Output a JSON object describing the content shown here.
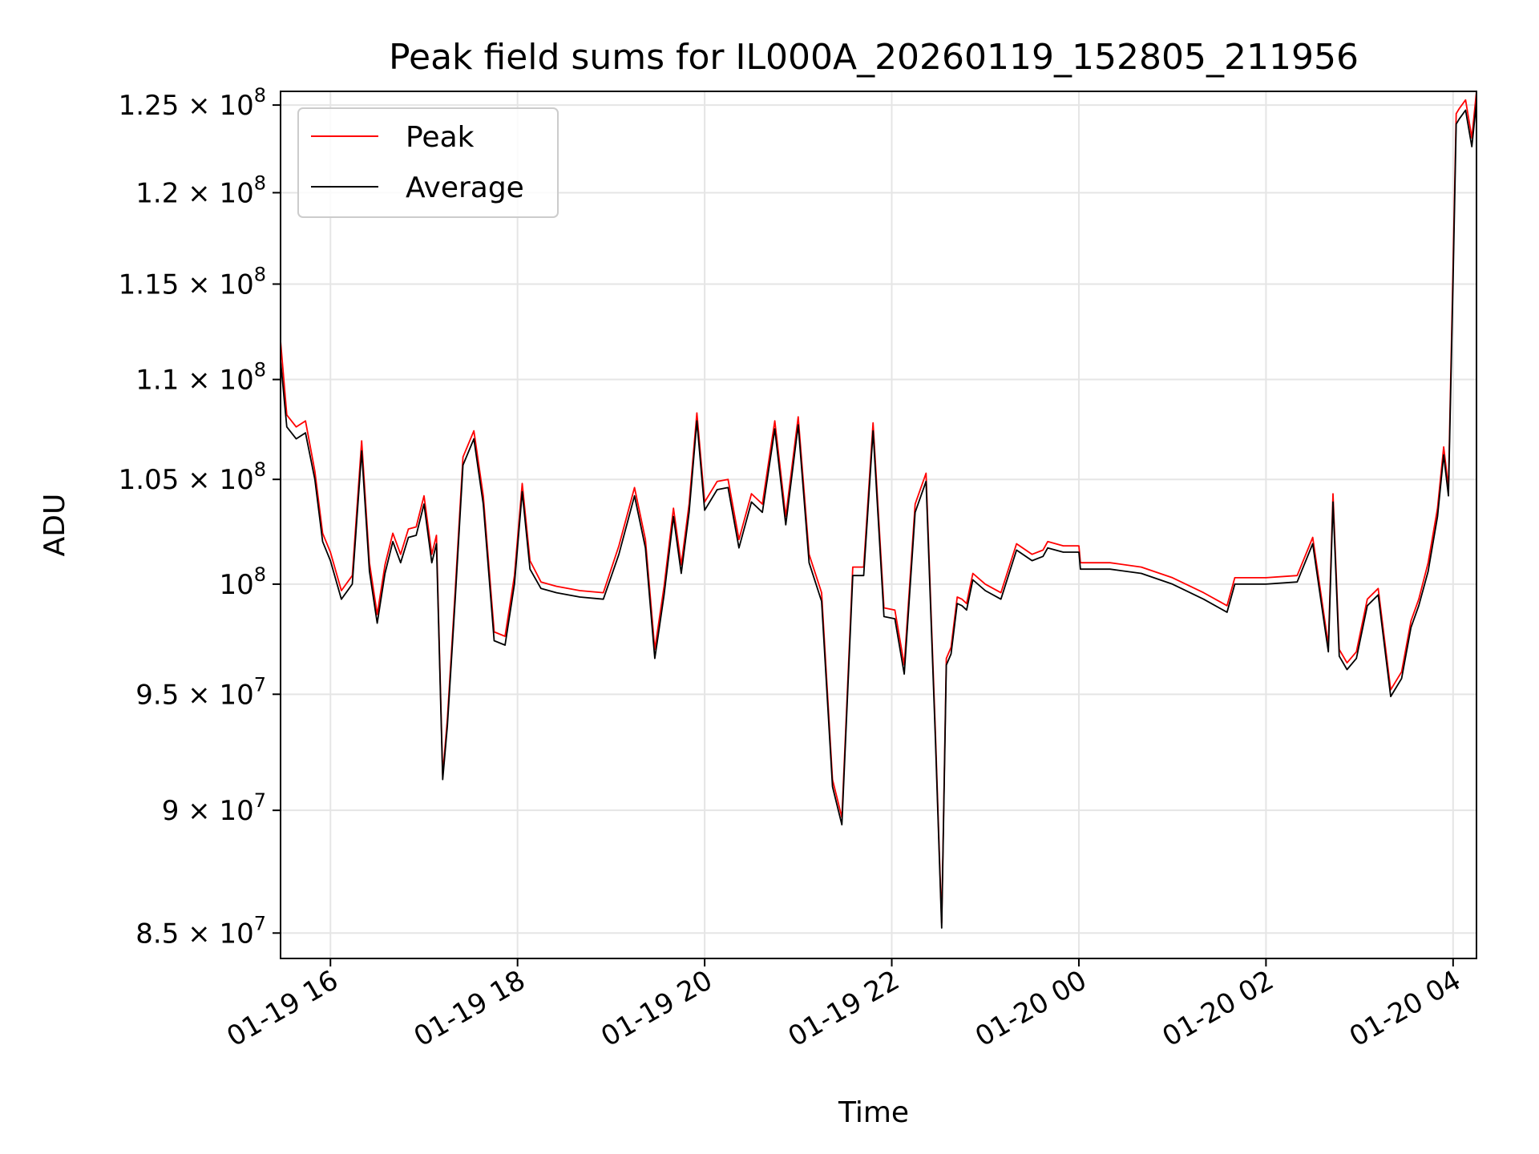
{
  "chart_data": {
    "type": "line",
    "title": "Peak field sums for IL000A_20260119_152805_211956",
    "xlabel": "Time",
    "ylabel": "ADU",
    "y_scale": "log",
    "grid": true,
    "legend_position": "top-left",
    "xlim": [
      "2026-01-19 15:28",
      "2026-01-20 04:15"
    ],
    "ylim": [
      84000000,
      125800000
    ],
    "x_ticks": [
      {
        "value": "2026-01-19 16:00",
        "label": "01-19 16"
      },
      {
        "value": "2026-01-19 18:00",
        "label": "01-19 18"
      },
      {
        "value": "2026-01-19 20:00",
        "label": "01-19 20"
      },
      {
        "value": "2026-01-19 22:00",
        "label": "01-19 22"
      },
      {
        "value": "2026-01-20 00:00",
        "label": "01-20 00"
      },
      {
        "value": "2026-01-20 02:00",
        "label": "01-20 02"
      },
      {
        "value": "2026-01-20 04:00",
        "label": "01-20 04"
      }
    ],
    "y_ticks": [
      {
        "value": 85000000,
        "mantissa": "8.5",
        "base": "10",
        "exp": "7"
      },
      {
        "value": 90000000,
        "mantissa": "9",
        "base": "10",
        "exp": "7"
      },
      {
        "value": 95000000,
        "mantissa": "9.5",
        "base": "10",
        "exp": "7"
      },
      {
        "value": 100000000,
        "mantissa": "",
        "base": "10",
        "exp": "8"
      },
      {
        "value": 105000000,
        "mantissa": "1.05",
        "base": "10",
        "exp": "8"
      },
      {
        "value": 110000000,
        "mantissa": "1.1",
        "base": "10",
        "exp": "8"
      },
      {
        "value": 115000000,
        "mantissa": "1.15",
        "base": "10",
        "exp": "8"
      },
      {
        "value": 120000000,
        "mantissa": "1.2",
        "base": "10",
        "exp": "8"
      },
      {
        "value": 125000000,
        "mantissa": "1.25",
        "base": "10",
        "exp": "8"
      }
    ],
    "x": [
      "2026-01-19 15:28",
      "2026-01-19 15:32",
      "2026-01-19 15:38",
      "2026-01-19 15:44",
      "2026-01-19 15:50",
      "2026-01-19 15:55",
      "2026-01-19 16:00",
      "2026-01-19 16:07",
      "2026-01-19 16:14",
      "2026-01-19 16:20",
      "2026-01-19 16:25",
      "2026-01-19 16:30",
      "2026-01-19 16:35",
      "2026-01-19 16:40",
      "2026-01-19 16:45",
      "2026-01-19 16:50",
      "2026-01-19 16:55",
      "2026-01-19 17:00",
      "2026-01-19 17:05",
      "2026-01-19 17:08",
      "2026-01-19 17:12",
      "2026-01-19 17:15",
      "2026-01-19 17:20",
      "2026-01-19 17:25",
      "2026-01-19 17:32",
      "2026-01-19 17:38",
      "2026-01-19 17:45",
      "2026-01-19 17:52",
      "2026-01-19 17:58",
      "2026-01-19 18:03",
      "2026-01-19 18:08",
      "2026-01-19 18:15",
      "2026-01-19 18:25",
      "2026-01-19 18:40",
      "2026-01-19 18:55",
      "2026-01-19 19:05",
      "2026-01-19 19:15",
      "2026-01-19 19:22",
      "2026-01-19 19:28",
      "2026-01-19 19:34",
      "2026-01-19 19:40",
      "2026-01-19 19:45",
      "2026-01-19 19:50",
      "2026-01-19 19:55",
      "2026-01-19 20:00",
      "2026-01-19 20:08",
      "2026-01-19 20:15",
      "2026-01-19 20:22",
      "2026-01-19 20:30",
      "2026-01-19 20:37",
      "2026-01-19 20:45",
      "2026-01-19 20:52",
      "2026-01-19 21:00",
      "2026-01-19 21:07",
      "2026-01-19 21:15",
      "2026-01-19 21:22",
      "2026-01-19 21:28",
      "2026-01-19 21:35",
      "2026-01-19 21:42",
      "2026-01-19 21:48",
      "2026-01-19 21:55",
      "2026-01-19 22:02",
      "2026-01-19 22:08",
      "2026-01-19 22:15",
      "2026-01-19 22:22",
      "2026-01-19 22:28",
      "2026-01-19 22:32",
      "2026-01-19 22:35",
      "2026-01-19 22:38",
      "2026-01-19 22:42",
      "2026-01-19 22:45",
      "2026-01-19 22:48",
      "2026-01-19 22:52",
      "2026-01-19 23:00",
      "2026-01-19 23:10",
      "2026-01-19 23:20",
      "2026-01-19 23:30",
      "2026-01-19 23:37",
      "2026-01-19 23:40",
      "2026-01-19 23:50",
      "2026-01-20 00:00",
      "2026-01-20 00:01",
      "2026-01-20 00:20",
      "2026-01-20 00:40",
      "2026-01-20 01:00",
      "2026-01-20 01:20",
      "2026-01-20 01:35",
      "2026-01-20 01:40",
      "2026-01-20 02:00",
      "2026-01-20 02:20",
      "2026-01-20 02:30",
      "2026-01-20 02:40",
      "2026-01-20 02:43",
      "2026-01-20 02:47",
      "2026-01-20 02:52",
      "2026-01-20 02:58",
      "2026-01-20 03:05",
      "2026-01-20 03:12",
      "2026-01-20 03:20",
      "2026-01-20 03:27",
      "2026-01-20 03:33",
      "2026-01-20 03:38",
      "2026-01-20 03:44",
      "2026-01-20 03:50",
      "2026-01-20 03:54",
      "2026-01-20 03:57",
      "2026-01-20 04:00",
      "2026-01-20 04:02",
      "2026-01-20 04:04",
      "2026-01-20 04:08",
      "2026-01-20 04:12",
      "2026-01-20 04:15"
    ],
    "series": [
      {
        "name": "Peak",
        "color": "#ff0000",
        "values": [
          112000000,
          108200000,
          107600000,
          107900000,
          105400000,
          102400000,
          101500000,
          99700000,
          100400000,
          106900000,
          101000000,
          98600000,
          100900000,
          102400000,
          101400000,
          102600000,
          102700000,
          104200000,
          101400000,
          102300000,
          91500000,
          93900000,
          99700000,
          106100000,
          107400000,
          104200000,
          97800000,
          97600000,
          100400000,
          104800000,
          101100000,
          100100000,
          99900000,
          99700000,
          99600000,
          101800000,
          104600000,
          102100000,
          97000000,
          99900000,
          103600000,
          100900000,
          103800000,
          108300000,
          103900000,
          104900000,
          105000000,
          102100000,
          104300000,
          103800000,
          107900000,
          103200000,
          108100000,
          101400000,
          99600000,
          91300000,
          89700000,
          100800000,
          100800000,
          107800000,
          98900000,
          98800000,
          96300000,
          103800000,
          105300000,
          93300000,
          85400000,
          96600000,
          97100000,
          99400000,
          99300000,
          99100000,
          100500000,
          100000000,
          99600000,
          101900000,
          101400000,
          101600000,
          102000000,
          101800000,
          101800000,
          101000000,
          101000000,
          100800000,
          100300000,
          99600000,
          99000000,
          100300000,
          100300000,
          100400000,
          102200000,
          97200000,
          104300000,
          97000000,
          96400000,
          96900000,
          99300000,
          99800000,
          95200000,
          96000000,
          98300000,
          99300000,
          101000000,
          103600000,
          106600000,
          104600000,
          116000000,
          124500000,
          124800000,
          125300000,
          123100000,
          125800000
        ]
      },
      {
        "name": "Average",
        "color": "#000000",
        "values": [
          111000000,
          107600000,
          107000000,
          107300000,
          105000000,
          102000000,
          101100000,
          99300000,
          100000000,
          106400000,
          100600000,
          98200000,
          100500000,
          102000000,
          101000000,
          102200000,
          102300000,
          103800000,
          101000000,
          101900000,
          91300000,
          93600000,
          99300000,
          105700000,
          107000000,
          103800000,
          97400000,
          97200000,
          100000000,
          104400000,
          100700000,
          99800000,
          99600000,
          99400000,
          99300000,
          101400000,
          104200000,
          101700000,
          96600000,
          99500000,
          103200000,
          100500000,
          103400000,
          107900000,
          103500000,
          104500000,
          104600000,
          101700000,
          103900000,
          103400000,
          107500000,
          102800000,
          107700000,
          101000000,
          99200000,
          91000000,
          89400000,
          100400000,
          100400000,
          107400000,
          98500000,
          98400000,
          95900000,
          103400000,
          104900000,
          93000000,
          85200000,
          96300000,
          96800000,
          99100000,
          99000000,
          98800000,
          100200000,
          99700000,
          99300000,
          101600000,
          101100000,
          101300000,
          101700000,
          101500000,
          101500000,
          100700000,
          100700000,
          100500000,
          100000000,
          99300000,
          98700000,
          100000000,
          100000000,
          100100000,
          101900000,
          96900000,
          103900000,
          96700000,
          96100000,
          96600000,
          99000000,
          99500000,
          94900000,
          95700000,
          98000000,
          99000000,
          100600000,
          103200000,
          106200000,
          104200000,
          115200000,
          123900000,
          124200000,
          124700000,
          122600000,
          125200000
        ]
      }
    ]
  }
}
